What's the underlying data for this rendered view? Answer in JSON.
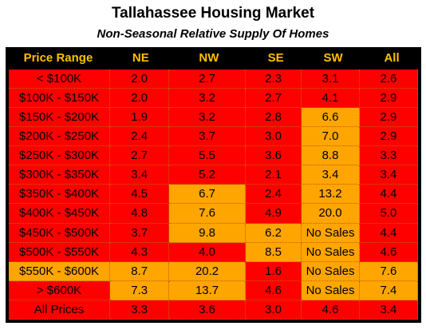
{
  "title": "Tallahassee Housing Market",
  "subtitle": "Non-Seasonal Relative Supply Of Homes",
  "colors": {
    "header_bg": "#000000",
    "header_text": "#ffc000",
    "red": "#ff0000",
    "orange": "#ffa500"
  },
  "table": {
    "headers": [
      "Price Range",
      "NE",
      "NW",
      "SE",
      "SW",
      "All"
    ],
    "rows": [
      {
        "cells": [
          "< $100K",
          "2.0",
          "2.7",
          "2.3",
          "3.1",
          "2.6"
        ],
        "colors": [
          "red",
          "red",
          "red",
          "red",
          "red",
          "red"
        ]
      },
      {
        "cells": [
          "$100K - $150K",
          "2.0",
          "3.2",
          "2.7",
          "4.1",
          "2.9"
        ],
        "colors": [
          "red",
          "red",
          "red",
          "red",
          "red",
          "red"
        ]
      },
      {
        "cells": [
          "$150K - $200K",
          "1.9",
          "3.2",
          "2.8",
          "6.6",
          "2.9"
        ],
        "colors": [
          "red",
          "red",
          "red",
          "red",
          "orange",
          "red"
        ]
      },
      {
        "cells": [
          "$200K - $250K",
          "2.4",
          "3.7",
          "3.0",
          "7.0",
          "2.9"
        ],
        "colors": [
          "red",
          "red",
          "red",
          "red",
          "orange",
          "red"
        ]
      },
      {
        "cells": [
          "$250K - $300K",
          "2.7",
          "5.5",
          "3.6",
          "8.8",
          "3.3"
        ],
        "colors": [
          "red",
          "red",
          "red",
          "red",
          "orange",
          "red"
        ]
      },
      {
        "cells": [
          "$300K - $350K",
          "3.4",
          "5.2",
          "2.1",
          "3.4",
          "3.4"
        ],
        "colors": [
          "red",
          "red",
          "red",
          "red",
          "orange",
          "red"
        ]
      },
      {
        "cells": [
          "$350K - $400K",
          "4.5",
          "6.7",
          "2.4",
          "13.2",
          "4.4"
        ],
        "colors": [
          "red",
          "red",
          "orange",
          "red",
          "orange",
          "red"
        ]
      },
      {
        "cells": [
          "$400K - $450K",
          "4.8",
          "7.6",
          "4.9",
          "20.0",
          "5.0"
        ],
        "colors": [
          "red",
          "red",
          "orange",
          "red",
          "orange",
          "red"
        ]
      },
      {
        "cells": [
          "$450K - $500K",
          "3.7",
          "9.8",
          "6.2",
          "No Sales",
          "4.4"
        ],
        "colors": [
          "red",
          "red",
          "orange",
          "orange",
          "orange",
          "red"
        ]
      },
      {
        "cells": [
          "$500K - $550K",
          "4.3",
          "4.0",
          "8.5",
          "No Sales",
          "4.6"
        ],
        "colors": [
          "red",
          "red",
          "red",
          "orange",
          "orange",
          "red"
        ]
      },
      {
        "cells": [
          "$550K - $600K",
          "8.7",
          "20.2",
          "1.6",
          "No Sales",
          "7.6"
        ],
        "colors": [
          "orange",
          "orange",
          "orange",
          "red",
          "orange",
          "orange"
        ]
      },
      {
        "cells": [
          "> $600K",
          "7.3",
          "13.7",
          "4.6",
          "No Sales",
          "7.4"
        ],
        "colors": [
          "red",
          "orange",
          "orange",
          "red",
          "orange",
          "orange"
        ]
      },
      {
        "cells": [
          "All Prices",
          "3.3",
          "3.6",
          "3.0",
          "4.6",
          "3.4"
        ],
        "colors": [
          "red",
          "red",
          "red",
          "red",
          "red",
          "red"
        ]
      }
    ]
  }
}
